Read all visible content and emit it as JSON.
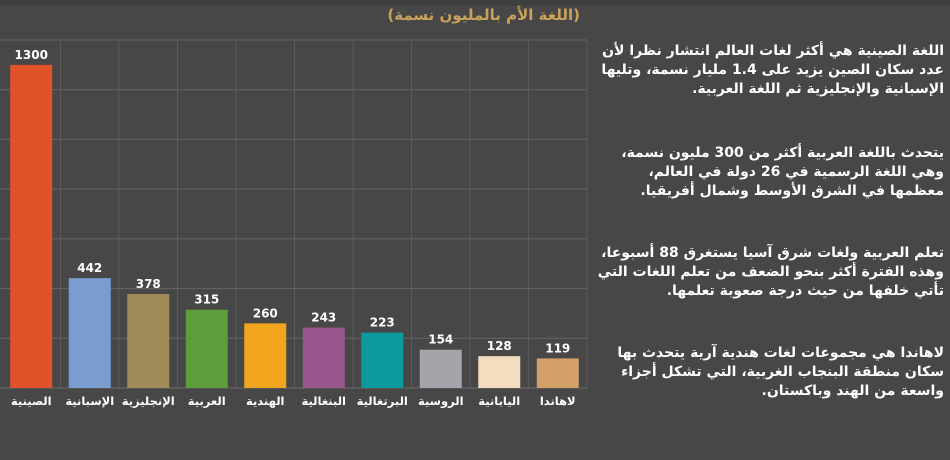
{
  "chart_data": {
    "type": "bar",
    "title": "",
    "subtitle": "(اللغة الأم بالمليون نسمة)",
    "xlabel": "",
    "ylabel": "",
    "ylim": [
      0,
      1400
    ],
    "grid": true,
    "categories": [
      "الصينية",
      "الإسبانية",
      "الإنجليزية",
      "العربية",
      "الهندية",
      "البنغالية",
      "البرتغالية",
      "الروسية",
      "اليابانية",
      "لاهاندا"
    ],
    "values": [
      1300,
      442,
      378,
      315,
      260,
      243,
      223,
      154,
      128,
      119
    ],
    "colors": [
      "#e0532a",
      "#7a9dd0",
      "#a08a58",
      "#5d9e3a",
      "#f2a51e",
      "#98588e",
      "#0b9b9e",
      "#a3a5aa",
      "#f4dcc0",
      "#d4a06a"
    ]
  },
  "info_blocks": [
    "اللغة الصينية هي أكثر لغات العالم انتشار نظرا لأن\nعدد سكان الصين يزيد على 1.4 مليار نسمة، وتليها\nالإسبانية والإنجليزية ثم اللغة العربية.",
    "يتحدث باللغة العربية أكثر من 300 مليون نسمة،\nوهي اللغة الرسمية في 26 دولة في العالم،\nمعظمها في الشرق الأوسط وشمال أفريقيا.",
    "تعلم العربية ولغات شرق آسيا يستغرق 88 أسبوعا،\nوهذه الفترة أكثر بنحو الضعف من تعلم اللغات التي\nتأتي خلفها من حيث درجة صعوبة تعلمها.",
    "لاهاندا هي مجموعات لغات هندية آرية يتحدث بها\nسكان منطقة البنجاب الغربية، التي تشكل أجزاء\nواسعة من الهند وباكستان."
  ]
}
